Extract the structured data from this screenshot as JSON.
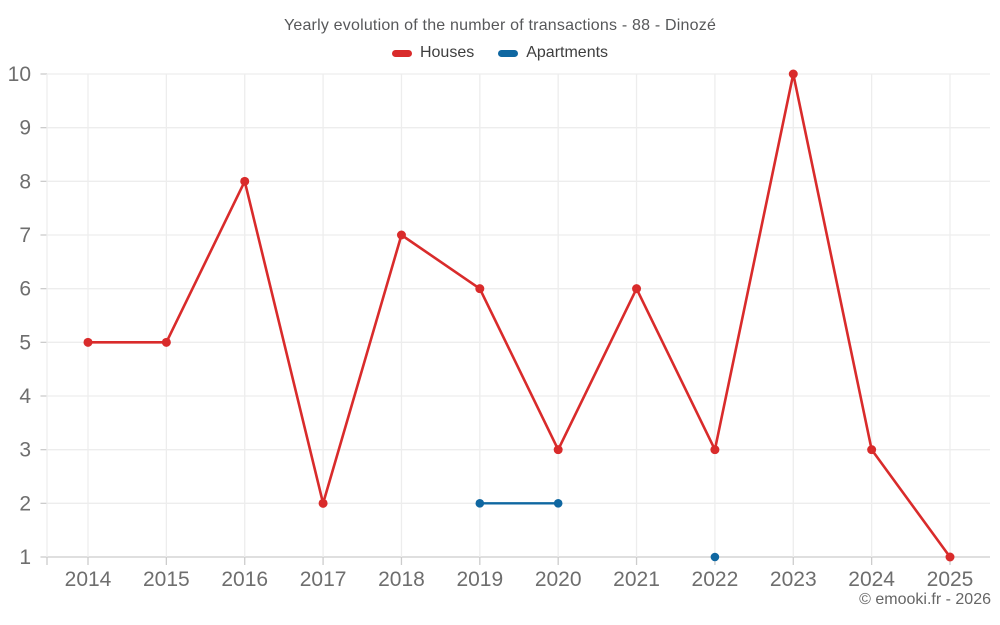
{
  "chart": {
    "title": "Yearly evolution of the number of transactions - 88 - Dinozé",
    "watermark": "© emooki.fr - 2026",
    "background_color": "#ffffff",
    "grid_color": "#ededed",
    "axis_line_color": "#cccccc",
    "tick_color": "#cccccc",
    "tick_label_color": "#6e6e6e",
    "title_color": "#57585a",
    "legend_text_color": "#3e3e3e"
  },
  "chart_data": {
    "type": "line",
    "x": [
      2014,
      2015,
      2016,
      2017,
      2018,
      2019,
      2020,
      2021,
      2022,
      2023,
      2024,
      2025
    ],
    "series": [
      {
        "name": "Houses",
        "color": "#d92b2b",
        "values": [
          5,
          5,
          8,
          2,
          7,
          6,
          3,
          6,
          3,
          10,
          3,
          1
        ]
      },
      {
        "name": "Apartments",
        "color": "#0f67a1",
        "values": [
          null,
          null,
          null,
          null,
          null,
          2,
          2,
          null,
          1,
          null,
          null,
          null
        ]
      }
    ],
    "ylim": [
      1,
      10
    ],
    "y_ticks": [
      1,
      2,
      3,
      4,
      5,
      6,
      7,
      8,
      9,
      10
    ],
    "grid": true,
    "legend_position": "top",
    "xlabel": "",
    "ylabel": ""
  }
}
